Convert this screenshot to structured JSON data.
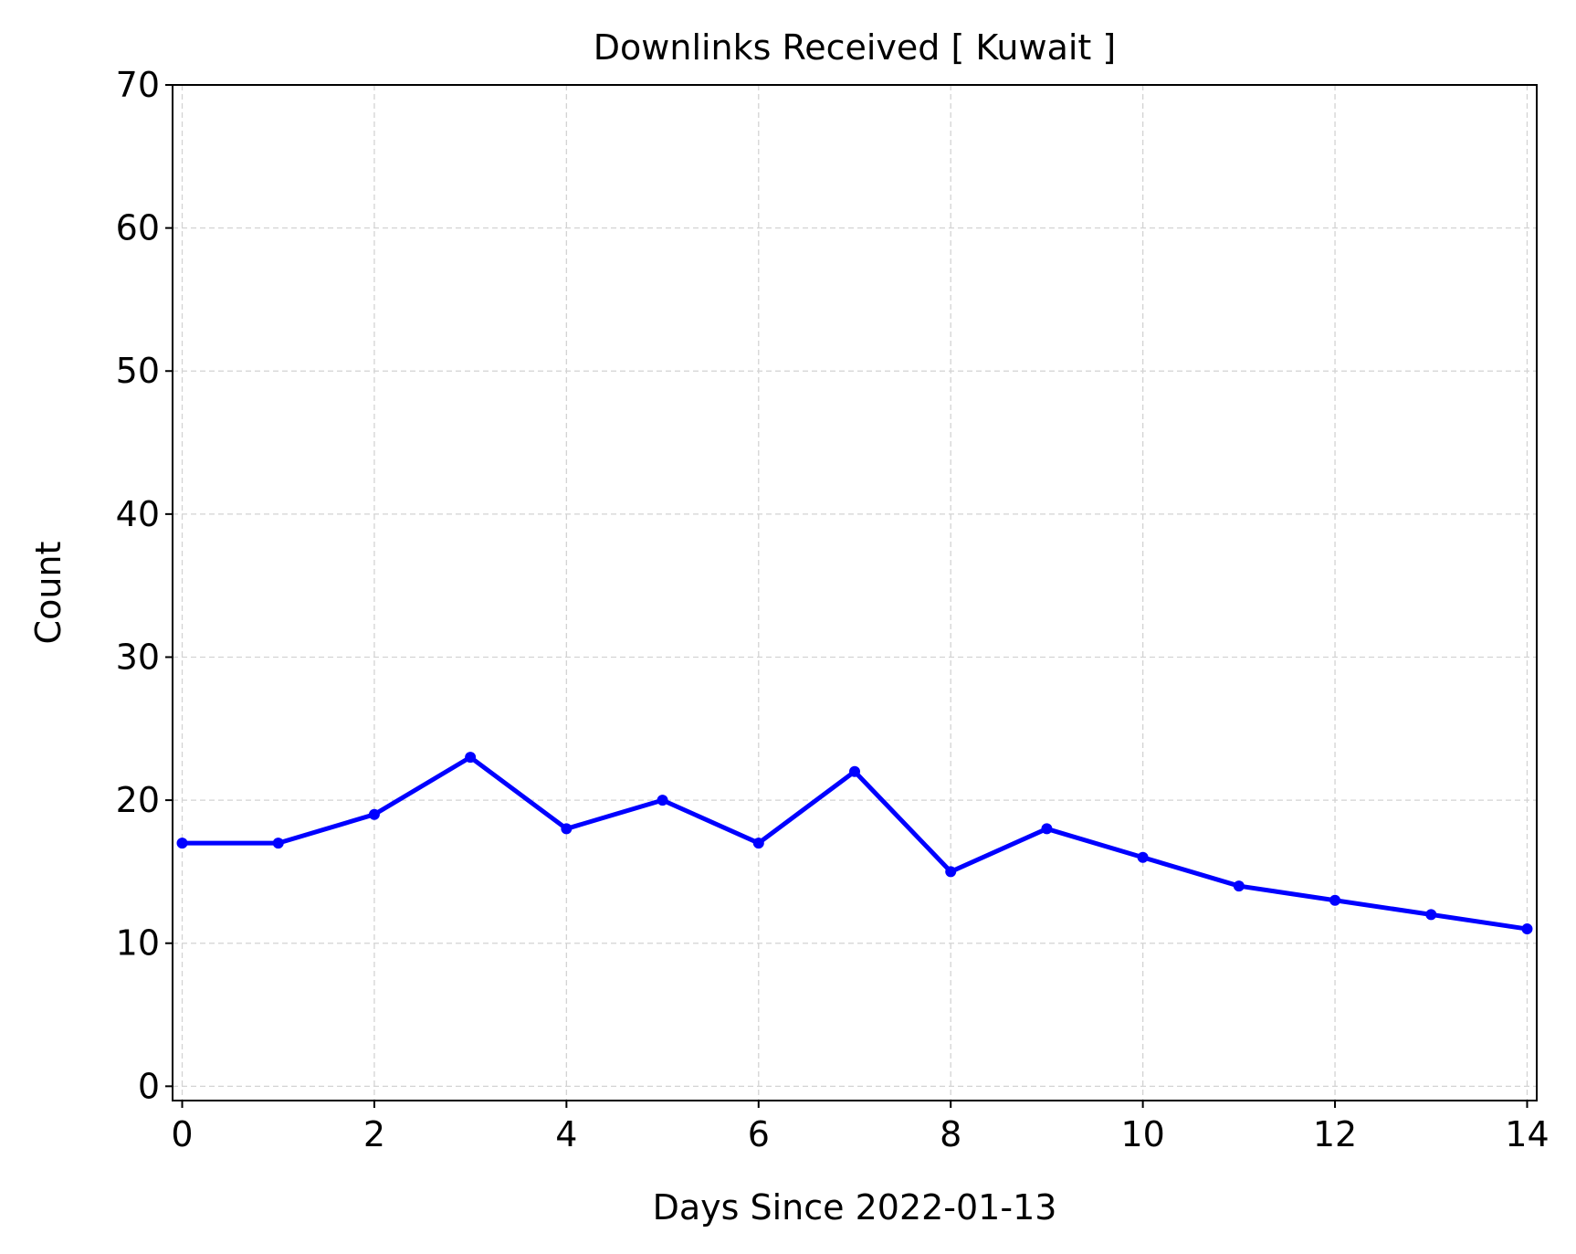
{
  "chart_data": {
    "type": "line",
    "title": "Downlinks Received [ Kuwait ]",
    "xlabel": "Days Since 2022-01-13",
    "ylabel": "Count",
    "xlim": [
      -0.1,
      14.1
    ],
    "ylim": [
      -1,
      70
    ],
    "xticks": [
      0,
      2,
      4,
      6,
      8,
      10,
      12,
      14
    ],
    "yticks": [
      0,
      10,
      20,
      30,
      40,
      50,
      60,
      70
    ],
    "grid": true,
    "series": [
      {
        "color": "#0000ff",
        "x": [
          0,
          1,
          2,
          3,
          4,
          5,
          6,
          7,
          8,
          9,
          10,
          11,
          12,
          13,
          14
        ],
        "y": [
          17,
          17,
          19,
          23,
          18,
          20,
          17,
          22,
          15,
          18,
          16,
          14,
          13,
          12,
          11
        ]
      }
    ]
  }
}
